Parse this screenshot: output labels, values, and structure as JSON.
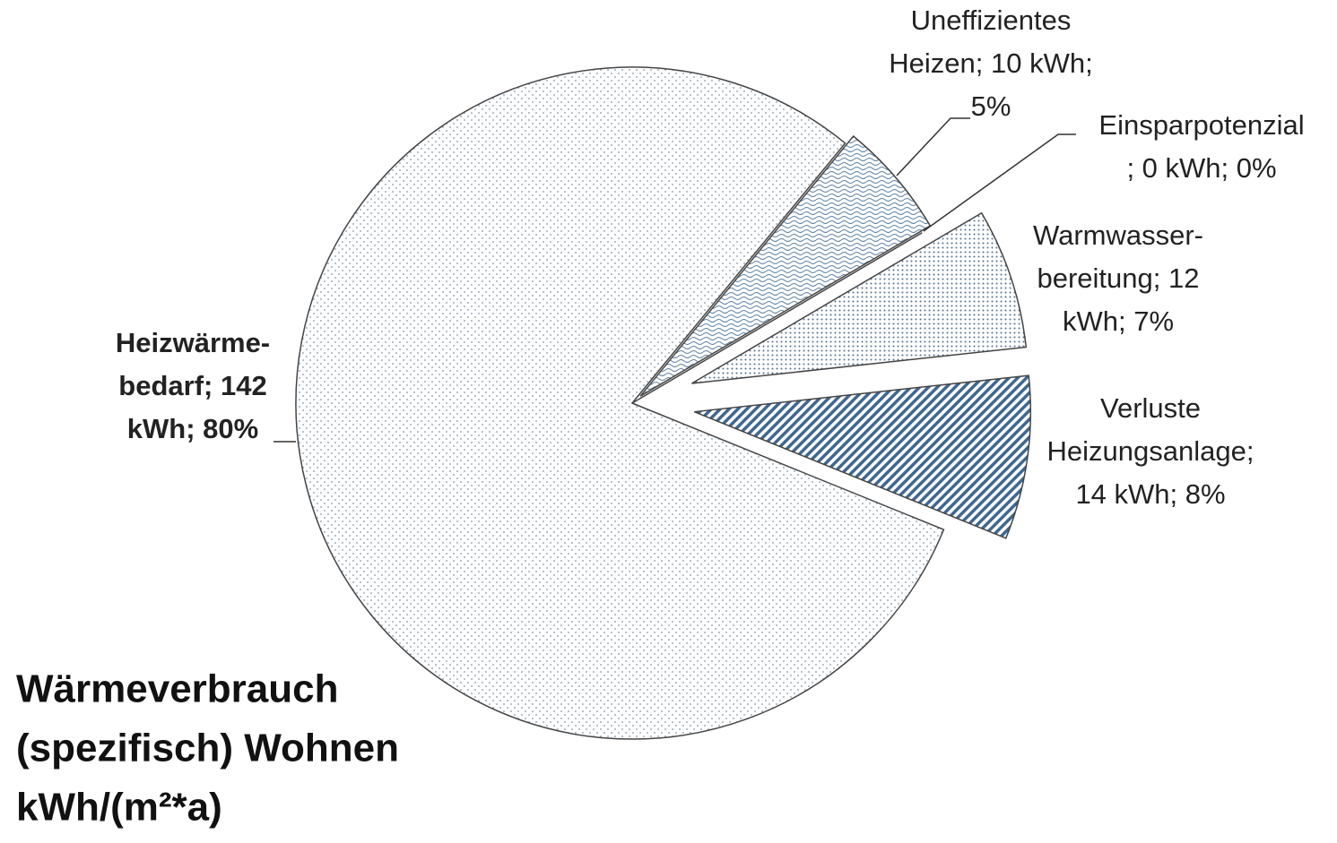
{
  "chart_data": {
    "type": "pie",
    "title": [
      "Wärmeverbrauch",
      "(spezifisch) Wohnen",
      "kWh/(m²*a)"
    ],
    "values": [
      10,
      0,
      12,
      14,
      142
    ],
    "value_labels": [
      [
        "Uneffizientes",
        "Heizen; 10 kWh;",
        "5%"
      ],
      [
        "Einsparpotenzial",
        "; 0 kWh; 0%"
      ],
      [
        "Warmwasser-",
        "bereitung; 12",
        "kWh; 7%"
      ],
      [
        "Verluste",
        "Heizungsanlage;",
        "14 kWh; 8%"
      ],
      [
        "Heizwärme-",
        "bedarf; 142",
        "kWh; 80%"
      ]
    ],
    "colors": [
      "#d9e6f2",
      "#d9e6f2",
      "#c9dbee",
      "#6f93b8",
      "#e3edf7"
    ]
  }
}
